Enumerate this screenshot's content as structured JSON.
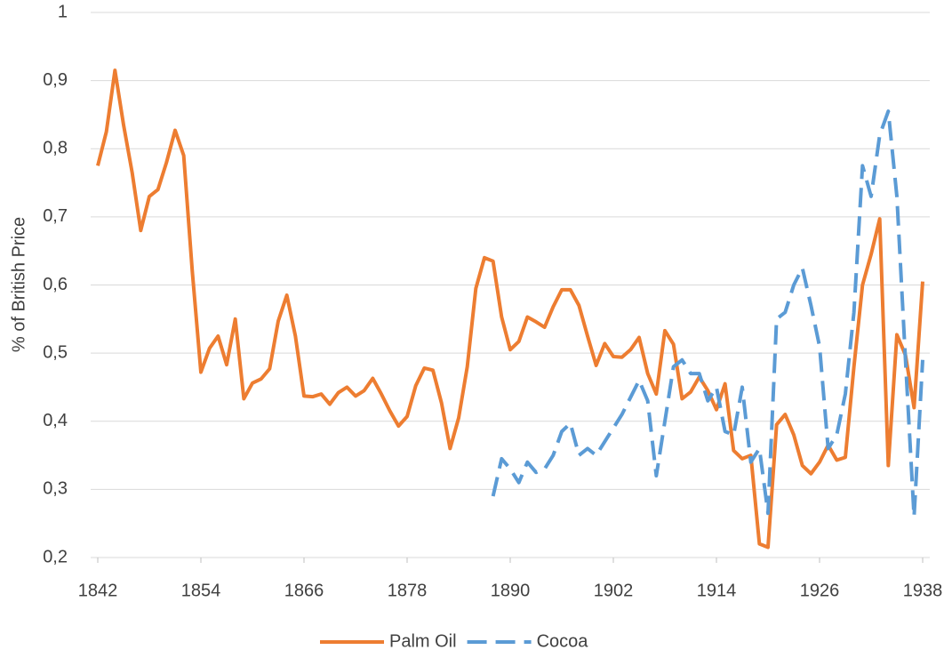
{
  "chart_data": {
    "type": "line",
    "y_label": "% of British Price",
    "x": [
      1842,
      1843,
      1844,
      1845,
      1846,
      1847,
      1848,
      1849,
      1850,
      1851,
      1852,
      1853,
      1854,
      1855,
      1856,
      1857,
      1858,
      1859,
      1860,
      1861,
      1862,
      1863,
      1864,
      1865,
      1866,
      1867,
      1868,
      1869,
      1870,
      1871,
      1872,
      1873,
      1874,
      1875,
      1876,
      1877,
      1878,
      1879,
      1880,
      1881,
      1882,
      1883,
      1884,
      1885,
      1886,
      1887,
      1888,
      1889,
      1890,
      1891,
      1892,
      1893,
      1894,
      1895,
      1896,
      1897,
      1898,
      1899,
      1900,
      1901,
      1902,
      1903,
      1904,
      1905,
      1906,
      1907,
      1908,
      1909,
      1910,
      1911,
      1912,
      1913,
      1914,
      1915,
      1916,
      1917,
      1918,
      1919,
      1920,
      1921,
      1922,
      1923,
      1924,
      1925,
      1926,
      1927,
      1928,
      1929,
      1930,
      1931,
      1932,
      1933,
      1934,
      1935,
      1936,
      1937,
      1938
    ],
    "series": [
      {
        "name": "Palm Oil",
        "color": "#ed7d31",
        "dash": false,
        "values": [
          0.775,
          0.825,
          0.915,
          0.835,
          0.765,
          0.68,
          0.73,
          0.74,
          0.78,
          0.827,
          0.79,
          0.62,
          0.472,
          0.507,
          0.525,
          0.483,
          0.55,
          0.433,
          0.456,
          0.462,
          0.477,
          0.547,
          0.585,
          0.525,
          0.437,
          0.436,
          0.44,
          0.425,
          0.442,
          0.45,
          0.437,
          0.445,
          0.463,
          0.44,
          0.415,
          0.393,
          0.407,
          0.452,
          0.478,
          0.475,
          0.427,
          0.36,
          0.405,
          0.48,
          0.595,
          0.64,
          0.635,
          0.553,
          0.505,
          0.517,
          0.553,
          0.546,
          0.538,
          0.568,
          0.593,
          0.593,
          0.57,
          0.525,
          0.482,
          0.514,
          0.495,
          0.494,
          0.505,
          0.523,
          0.47,
          0.44,
          0.533,
          0.513,
          0.433,
          0.443,
          0.465,
          0.445,
          0.417,
          0.455,
          0.357,
          0.345,
          0.35,
          0.22,
          0.215,
          0.395,
          0.41,
          0.38,
          0.335,
          0.323,
          0.34,
          0.365,
          0.343,
          0.347,
          0.48,
          0.6,
          0.645,
          0.697,
          0.335,
          0.527,
          0.497,
          0.42,
          0.605
        ]
      },
      {
        "name": "Cocoa",
        "color": "#5b9bd5",
        "dash": true,
        "values": [
          null,
          null,
          null,
          null,
          null,
          null,
          null,
          null,
          null,
          null,
          null,
          null,
          null,
          null,
          null,
          null,
          null,
          null,
          null,
          null,
          null,
          null,
          null,
          null,
          null,
          null,
          null,
          null,
          null,
          null,
          null,
          null,
          null,
          null,
          null,
          null,
          null,
          null,
          null,
          null,
          null,
          null,
          null,
          null,
          null,
          null,
          0.29,
          0.345,
          0.33,
          0.31,
          0.34,
          0.325,
          0.33,
          0.35,
          0.385,
          0.397,
          0.35,
          0.36,
          0.35,
          0.37,
          0.39,
          0.41,
          0.435,
          0.46,
          0.43,
          0.32,
          0.4,
          0.48,
          0.49,
          0.47,
          0.47,
          0.43,
          0.45,
          0.385,
          0.38,
          0.45,
          0.34,
          0.36,
          0.265,
          0.55,
          0.56,
          0.6,
          0.625,
          0.57,
          0.51,
          0.36,
          0.38,
          0.44,
          0.56,
          0.775,
          0.73,
          0.82,
          0.855,
          0.73,
          0.49,
          0.26,
          0.49
        ]
      }
    ],
    "xlim": [
      1842,
      1938
    ],
    "xticks": [
      1842,
      1854,
      1866,
      1878,
      1890,
      1902,
      1914,
      1926,
      1938
    ],
    "ylim": [
      0.2,
      1
    ],
    "yticks": [
      {
        "value": 0.2,
        "label": "0,2"
      },
      {
        "value": 0.3,
        "label": "0,3"
      },
      {
        "value": 0.4,
        "label": "0,4"
      },
      {
        "value": 0.5,
        "label": "0,5"
      },
      {
        "value": 0.6,
        "label": "0,6"
      },
      {
        "value": 0.7,
        "label": "0,7"
      },
      {
        "value": 0.8,
        "label": "0,8"
      },
      {
        "value": 0.9,
        "label": "0,9"
      },
      1
    ],
    "grid": true,
    "legend": "bottom"
  }
}
